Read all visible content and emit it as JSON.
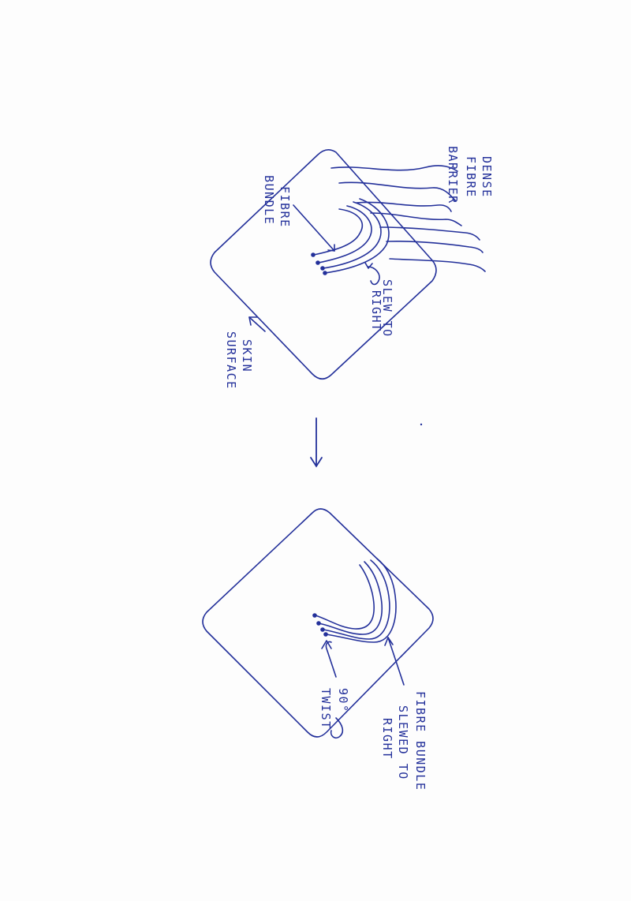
{
  "colors": {
    "ink": "#23309a",
    "paper": "#fdfdfd"
  },
  "labels": {
    "dense_fibre_barrier": [
      "DENSE",
      "FIBRE",
      "BARRIER"
    ],
    "fibre_bundle": [
      "FIBRE",
      "BUNDLE"
    ],
    "slew_to_right": [
      "SLEW TO",
      "RIGHT"
    ],
    "skin_surface": [
      "SKIN",
      "SURFACE"
    ],
    "fibre_bundle_slewed": [
      "FIBRE BUNDLE",
      "SLEWED TO",
      "RIGHT"
    ],
    "twist": [
      "90°",
      "TWIST"
    ]
  }
}
